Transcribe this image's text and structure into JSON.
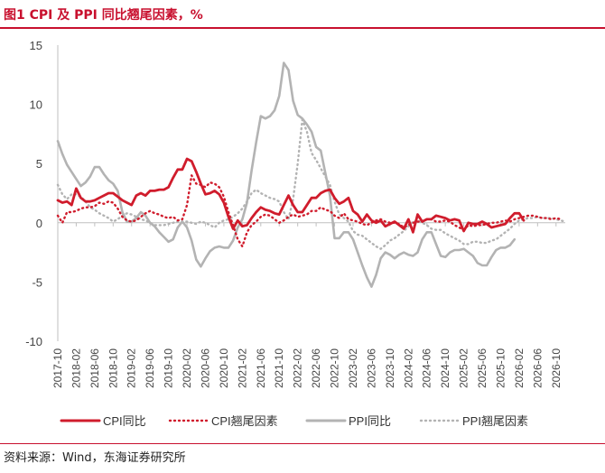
{
  "header": {
    "title": "图1 CPI 及 PPI 同比翘尾因素，%"
  },
  "footer": {
    "source": "资料来源：Wind，东海证券研究所"
  },
  "colors": {
    "accent": "#c8102e",
    "cpi": "#d01c2c",
    "ppi": "#b3b3b3"
  },
  "chart_data": {
    "type": "line",
    "title": "CPI 及 PPI 同比翘尾因素，%",
    "xlabel": "",
    "ylabel": "",
    "ylim": [
      -10,
      15
    ],
    "yticks": [
      15,
      10,
      5,
      0,
      -5,
      -10
    ],
    "xlim": [
      "2017-10",
      "2026-12"
    ],
    "xticks": [
      "2017-10",
      "2018-02",
      "2018-06",
      "2018-10",
      "2019-02",
      "2019-06",
      "2019-10",
      "2020-02",
      "2020-06",
      "2020-10",
      "2021-02",
      "2021-06",
      "2021-10",
      "2022-02",
      "2022-06",
      "2022-10",
      "2023-02",
      "2023-06",
      "2023-10",
      "2024-02",
      "2024-06",
      "2024-10",
      "2025-02",
      "2025-06",
      "2025-10",
      "2026-02",
      "2026-06",
      "2026-10"
    ],
    "legend_position": "bottom",
    "series": [
      {
        "name": "CPI同比",
        "style": "solid",
        "color": "#d01c2c",
        "start": "2017-10",
        "values": [
          1.9,
          1.7,
          1.8,
          1.5,
          2.9,
          2.1,
          1.8,
          1.8,
          1.9,
          2.1,
          2.3,
          2.5,
          2.5,
          2.2,
          1.9,
          1.7,
          1.5,
          2.3,
          2.5,
          2.3,
          2.7,
          2.7,
          2.8,
          2.8,
          3.0,
          3.8,
          4.5,
          4.5,
          5.4,
          5.2,
          4.3,
          3.3,
          2.4,
          2.5,
          2.7,
          2.4,
          1.7,
          0.5,
          -0.5,
          0.2,
          -0.3,
          -0.2,
          0.4,
          0.9,
          1.3,
          1.1,
          1.0,
          0.8,
          0.7,
          1.5,
          2.3,
          1.5,
          0.9,
          0.9,
          1.5,
          2.1,
          2.1,
          2.5,
          2.7,
          2.8,
          2.1,
          1.6,
          1.8,
          2.1,
          1.0,
          0.7,
          0.1,
          0.7,
          0.2,
          0.0,
          0.2,
          -0.3,
          -0.1,
          0.1,
          -0.2,
          -0.5,
          0.3,
          -0.8,
          0.7,
          0.1,
          0.3,
          0.3,
          0.6,
          0.5,
          0.4,
          0.2,
          0.3,
          0.2,
          -0.7,
          0.0,
          -0.1,
          -0.1,
          0.1,
          -0.1,
          -0.4,
          -0.3,
          -0.2,
          -0.1,
          0.4,
          0.8,
          0.8,
          0.2
        ]
      },
      {
        "name": "CPI翘尾因素",
        "style": "dotted",
        "color": "#d01c2c",
        "start": "2017-10",
        "values": [
          0.6,
          0.0,
          0.9,
          0.9,
          1.0,
          1.2,
          1.3,
          1.3,
          1.4,
          1.7,
          1.6,
          1.8,
          1.7,
          1.2,
          0.5,
          0.2,
          0.1,
          0.2,
          0.5,
          0.8,
          1.0,
          0.8,
          0.7,
          0.5,
          0.4,
          0.5,
          0.2,
          0.3,
          1.5,
          4.0,
          3.3,
          3.2,
          3.0,
          3.4,
          3.3,
          3.0,
          2.2,
          0.9,
          -0.2,
          -1.4,
          -2.0,
          -0.8,
          -0.2,
          0.1,
          0.5,
          0.7,
          0.6,
          0.3,
          0.0,
          0.2,
          0.5,
          0.7,
          0.5,
          0.6,
          0.7,
          1.0,
          1.0,
          1.3,
          1.1,
          1.0,
          0.6,
          0.4,
          0.8,
          0.3,
          0.2,
          0.1,
          -0.1,
          -0.2,
          0.0,
          0.2,
          0.3,
          0.1,
          0.0,
          0.0,
          -0.1,
          -0.4,
          -0.2,
          0.0,
          0.1,
          0.1,
          0.3,
          0.3,
          0.1,
          0.1,
          0.2,
          0.1,
          -0.2,
          -0.4,
          -0.6,
          -0.2,
          -0.3,
          -0.2,
          -0.2,
          -0.1,
          0.0,
          0.0,
          0.1,
          0.2,
          0.1,
          0.3,
          0.4,
          0.5,
          0.6,
          0.6,
          0.5,
          0.4,
          0.4,
          0.3,
          0.4,
          0.3
        ]
      },
      {
        "name": "PPI同比",
        "style": "solid",
        "color": "#b3b3b3",
        "start": "2017-10",
        "values": [
          6.9,
          5.8,
          4.9,
          4.3,
          3.7,
          3.1,
          3.4,
          3.9,
          4.7,
          4.7,
          4.1,
          3.6,
          3.3,
          2.7,
          0.9,
          0.1,
          0.1,
          0.4,
          0.9,
          0.6,
          0.0,
          -0.3,
          -0.8,
          -1.2,
          -1.6,
          -1.4,
          -0.4,
          0.1,
          -0.4,
          -1.5,
          -3.1,
          -3.7,
          -3.0,
          -2.4,
          -2.1,
          -2.0,
          -2.1,
          -2.1,
          -1.5,
          -0.4,
          0.3,
          1.7,
          4.4,
          6.8,
          9.0,
          8.8,
          9.0,
          9.5,
          10.7,
          13.5,
          12.9,
          10.3,
          9.1,
          8.8,
          8.3,
          7.7,
          6.4,
          6.1,
          4.2,
          2.3,
          -1.3,
          -1.3,
          -0.8,
          -0.8,
          -1.4,
          -2.5,
          -3.6,
          -4.6,
          -5.4,
          -4.4,
          -3.0,
          -2.5,
          -2.7,
          -3.0,
          -2.7,
          -2.5,
          -2.7,
          -2.8,
          -2.5,
          -1.4,
          -0.8,
          -0.8,
          -1.8,
          -2.8,
          -2.9,
          -2.5,
          -2.3,
          -2.3,
          -2.2,
          -2.5,
          -2.8,
          -3.4,
          -3.6,
          -3.6,
          -2.9,
          -2.3,
          -2.1,
          -2.1,
          -1.9,
          -1.4
        ]
      },
      {
        "name": "PPI翘尾因素",
        "style": "dotted",
        "color": "#b3b3b3",
        "start": "2017-10",
        "values": [
          3.2,
          2.4,
          2.0,
          2.4,
          2.4,
          2.2,
          1.8,
          1.3,
          1.1,
          0.8,
          0.6,
          0.4,
          0.1,
          0.3,
          0.6,
          0.8,
          0.7,
          0.5,
          0.3,
          0.2,
          0.0,
          -0.2,
          -0.2,
          -0.2,
          -0.1,
          0.0,
          0.1,
          0.1,
          0.1,
          0.0,
          -0.1,
          0.1,
          0.0,
          -0.2,
          -0.4,
          0.0,
          0.2,
          0.3,
          0.5,
          0.8,
          1.2,
          1.8,
          2.5,
          2.8,
          2.5,
          2.3,
          2.1,
          2.0,
          1.8,
          0.9,
          0.3,
          2.0,
          5.0,
          8.7,
          7.7,
          5.9,
          5.3,
          4.6,
          3.9,
          3.2,
          1.8,
          0.7,
          0.4,
          0.1,
          -0.7,
          -1.0,
          -1.1,
          -1.4,
          -1.7,
          -2.0,
          -2.2,
          -1.9,
          -1.5,
          -1.3,
          -1.0,
          -0.7,
          -0.3,
          0.1,
          0.2,
          0.0,
          -0.2,
          -0.5,
          -0.6,
          -0.6,
          -0.9,
          -1.1,
          -1.3,
          -1.5,
          -1.8,
          -1.8,
          -1.6,
          -1.6,
          -1.7,
          -1.7,
          -1.5,
          -1.4,
          -1.1,
          -0.8,
          -0.5,
          -0.1,
          0.2,
          0.3,
          0.4,
          0.4,
          0.5,
          0.4,
          0.4,
          0.4,
          0.3,
          0.2,
          0.1
        ]
      }
    ]
  }
}
